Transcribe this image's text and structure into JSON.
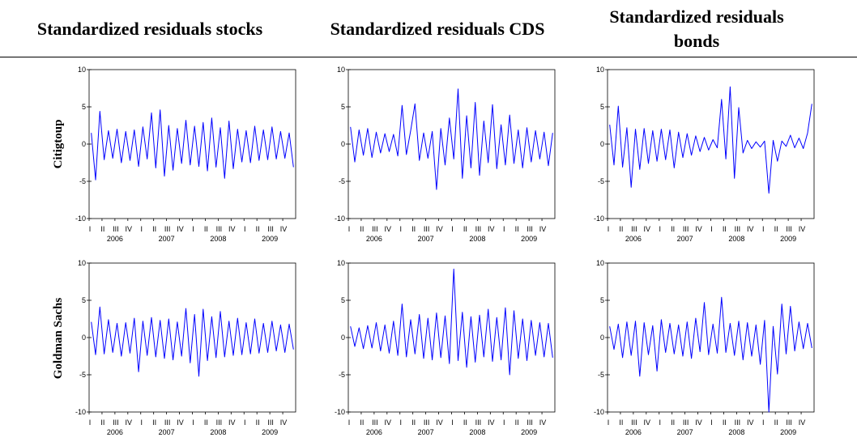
{
  "column_titles": [
    "Standardized residuals stocks",
    "Standardized residuals CDS",
    "Standardized residuals bonds"
  ],
  "row_labels": [
    "Citigtoup",
    "Goldman Sachs"
  ],
  "chart_data": [
    {
      "type": "line",
      "color": "#0000ff",
      "ylim": [
        -10,
        10
      ],
      "yticks": [
        -10,
        -5,
        0,
        5,
        10
      ],
      "categories": [
        "I",
        null,
        null,
        "II",
        null,
        null,
        "III",
        null,
        null,
        "IV",
        null,
        null,
        "I",
        null,
        null,
        "II",
        null,
        null,
        "III",
        null,
        null,
        "IV",
        null,
        null,
        "I",
        null,
        null,
        "II",
        null,
        null,
        "III",
        null,
        null,
        "IV",
        null,
        null,
        "I",
        null,
        null,
        "II",
        null,
        null,
        "III",
        null,
        null,
        "IV",
        null,
        null
      ],
      "year_labels": [
        "2006",
        "2007",
        "2008",
        "2009"
      ],
      "values": [
        1.5,
        -4.8,
        4.4,
        -2.1,
        1.8,
        -1.9,
        2.0,
        -2.5,
        1.7,
        -2.2,
        1.9,
        -3.0,
        2.3,
        -2.0,
        4.2,
        -3.2,
        4.6,
        -4.3,
        2.5,
        -3.5,
        2.1,
        -2.6,
        3.2,
        -2.8,
        2.4,
        -3.0,
        2.9,
        -3.6,
        3.5,
        -3.1,
        2.2,
        -4.6,
        3.1,
        -3.3,
        2.0,
        -2.4,
        1.8,
        -2.5,
        2.4,
        -2.2,
        1.9,
        -2.1,
        2.3,
        -2.0,
        1.7,
        -1.9,
        1.5,
        -3.1
      ]
    },
    {
      "type": "line",
      "color": "#0000ff",
      "ylim": [
        -10,
        10
      ],
      "yticks": [
        -10,
        -5,
        0,
        5,
        10
      ],
      "categories": [
        "I",
        null,
        null,
        "II",
        null,
        null,
        "III",
        null,
        null,
        "IV",
        null,
        null,
        "I",
        null,
        null,
        "II",
        null,
        null,
        "III",
        null,
        null,
        "IV",
        null,
        null,
        "I",
        null,
        null,
        "II",
        null,
        null,
        "III",
        null,
        null,
        "IV",
        null,
        null,
        "I",
        null,
        null,
        "II",
        null,
        null,
        "III",
        null,
        null,
        "IV",
        null,
        null
      ],
      "year_labels": [
        "2006",
        "2007",
        "2008",
        "2009"
      ],
      "values": [
        2.3,
        -2.4,
        1.9,
        -1.5,
        2.1,
        -1.8,
        1.6,
        -1.2,
        1.4,
        -1.0,
        1.3,
        -1.6,
        5.2,
        -1.4,
        1.8,
        5.4,
        -2.2,
        1.5,
        -1.9,
        1.7,
        -6.1,
        2.1,
        -2.8,
        3.5,
        -2.0,
        7.4,
        -4.6,
        3.8,
        -3.2,
        5.6,
        -4.2,
        3.1,
        -2.5,
        5.3,
        -3.3,
        2.6,
        -2.8,
        3.9,
        -2.6,
        1.9,
        -3.2,
        2.2,
        -2.4,
        1.8,
        -2.0,
        1.6,
        -2.9,
        1.5
      ]
    },
    {
      "type": "line",
      "color": "#0000ff",
      "ylim": [
        -10,
        10
      ],
      "yticks": [
        -10,
        -5,
        0,
        5,
        10
      ],
      "categories": [
        "I",
        null,
        null,
        "II",
        null,
        null,
        "III",
        null,
        null,
        "IV",
        null,
        null,
        "I",
        null,
        null,
        "II",
        null,
        null,
        "III",
        null,
        null,
        "IV",
        null,
        null,
        "I",
        null,
        null,
        "II",
        null,
        null,
        "III",
        null,
        null,
        "IV",
        null,
        null,
        "I",
        null,
        null,
        "II",
        null,
        null,
        "III",
        null,
        null,
        "IV",
        null,
        null
      ],
      "year_labels": [
        "2006",
        "2007",
        "2008",
        "2009"
      ],
      "values": [
        2.6,
        -2.8,
        5.1,
        -3.1,
        2.2,
        -5.8,
        2.0,
        -3.4,
        2.1,
        -2.6,
        1.8,
        -2.3,
        2.0,
        -2.1,
        1.9,
        -3.2,
        1.6,
        -1.8,
        1.4,
        -1.5,
        1.1,
        -1.0,
        0.9,
        -0.8,
        0.6,
        -0.5,
        6.0,
        -2.0,
        7.7,
        -4.6,
        4.9,
        -1.2,
        0.5,
        -0.6,
        0.3,
        -0.4,
        0.4,
        -6.6,
        0.5,
        -2.3,
        0.4,
        -0.3,
        1.2,
        -0.5,
        0.8,
        -0.6,
        1.5,
        5.4
      ]
    },
    {
      "type": "line",
      "color": "#0000ff",
      "ylim": [
        -10,
        10
      ],
      "yticks": [
        -10,
        -5,
        0,
        5,
        10
      ],
      "categories": [
        "I",
        null,
        null,
        "II",
        null,
        null,
        "III",
        null,
        null,
        "IV",
        null,
        null,
        "I",
        null,
        null,
        "II",
        null,
        null,
        "III",
        null,
        null,
        "IV",
        null,
        null,
        "I",
        null,
        null,
        "II",
        null,
        null,
        "III",
        null,
        null,
        "IV",
        null,
        null,
        "I",
        null,
        null,
        "II",
        null,
        null,
        "III",
        null,
        null,
        "IV",
        null,
        null
      ],
      "year_labels": [
        "2006",
        "2007",
        "2008",
        "2009"
      ],
      "values": [
        2.1,
        -2.3,
        4.1,
        -2.2,
        2.4,
        -2.0,
        1.9,
        -2.5,
        2.0,
        -2.1,
        2.6,
        -4.6,
        2.2,
        -2.4,
        2.7,
        -2.6,
        2.3,
        -2.8,
        2.5,
        -3.0,
        2.1,
        -2.5,
        3.9,
        -3.4,
        3.1,
        -5.2,
        3.8,
        -3.1,
        2.8,
        -2.7,
        3.5,
        -2.6,
        2.2,
        -2.4,
        2.6,
        -2.3,
        2.0,
        -2.2,
        2.5,
        -2.1,
        1.9,
        -2.0,
        2.2,
        -1.8,
        1.7,
        -2.0,
        1.8,
        -1.6
      ]
    },
    {
      "type": "line",
      "color": "#0000ff",
      "ylim": [
        -10,
        10
      ],
      "yticks": [
        -10,
        -5,
        0,
        5,
        10
      ],
      "categories": [
        "I",
        null,
        null,
        "II",
        null,
        null,
        "III",
        null,
        null,
        "IV",
        null,
        null,
        "I",
        null,
        null,
        "II",
        null,
        null,
        "III",
        null,
        null,
        "IV",
        null,
        null,
        "I",
        null,
        null,
        "II",
        null,
        null,
        "III",
        null,
        null,
        "IV",
        null,
        null,
        "I",
        null,
        null,
        "II",
        null,
        null,
        "III",
        null,
        null,
        "IV",
        null,
        null
      ],
      "year_labels": [
        "2006",
        "2007",
        "2008",
        "2009"
      ],
      "values": [
        1.5,
        -1.2,
        1.3,
        -1.5,
        1.6,
        -1.4,
        2.0,
        -1.8,
        1.7,
        -2.1,
        2.2,
        -2.4,
        4.5,
        -2.6,
        2.4,
        -2.2,
        3.1,
        -2.8,
        2.6,
        -3.0,
        3.3,
        -2.7,
        2.9,
        -3.5,
        9.2,
        -3.1,
        3.4,
        -4.0,
        2.8,
        -3.3,
        3.0,
        -2.6,
        3.8,
        -3.2,
        2.7,
        -3.0,
        4.0,
        -5.0,
        3.6,
        -2.8,
        2.5,
        -3.1,
        2.3,
        -2.4,
        2.0,
        -2.6,
        1.9,
        -2.7
      ]
    },
    {
      "type": "line",
      "color": "#0000ff",
      "ylim": [
        -10,
        10
      ],
      "yticks": [
        -10,
        -5,
        0,
        5,
        10
      ],
      "categories": [
        "I",
        null,
        null,
        "II",
        null,
        null,
        "III",
        null,
        null,
        "IV",
        null,
        null,
        "I",
        null,
        null,
        "II",
        null,
        null,
        "III",
        null,
        null,
        "IV",
        null,
        null,
        "I",
        null,
        null,
        "II",
        null,
        null,
        "III",
        null,
        null,
        "IV",
        null,
        null,
        "I",
        null,
        null,
        "II",
        null,
        null,
        "III",
        null,
        null,
        "IV",
        null,
        null
      ],
      "year_labels": [
        "2006",
        "2007",
        "2008",
        "2009"
      ],
      "values": [
        1.5,
        -1.6,
        1.8,
        -2.7,
        2.1,
        -2.4,
        2.2,
        -5.2,
        2.0,
        -2.3,
        1.6,
        -4.5,
        2.4,
        -2.0,
        1.9,
        -2.2,
        1.7,
        -2.5,
        2.1,
        -2.8,
        2.6,
        -1.9,
        4.7,
        -2.3,
        1.8,
        -2.1,
        5.4,
        -2.0,
        1.9,
        -2.4,
        2.2,
        -3.0,
        2.0,
        -2.5,
        1.7,
        -3.6,
        2.3,
        -10.0,
        1.5,
        -4.9,
        4.5,
        -2.2,
        4.2,
        -1.8,
        2.1,
        -1.5,
        1.9,
        -1.4
      ]
    }
  ]
}
